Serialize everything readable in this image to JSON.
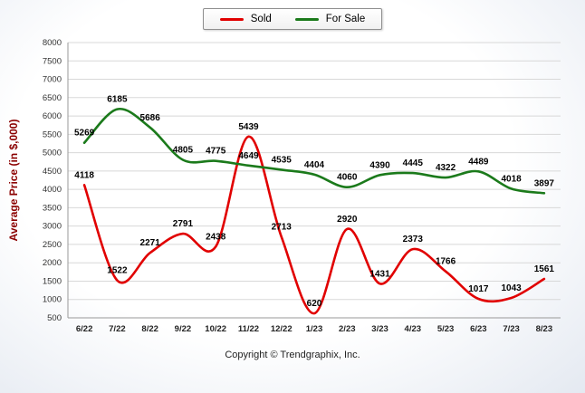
{
  "footer": {
    "copyright": "Copyright © Trendgraphix, Inc."
  },
  "chart_data": {
    "type": "line",
    "categories": [
      "6/22",
      "7/22",
      "8/22",
      "9/22",
      "10/22",
      "11/22",
      "12/22",
      "1/23",
      "2/23",
      "3/23",
      "4/23",
      "5/23",
      "6/23",
      "7/23",
      "8/23"
    ],
    "series": [
      {
        "name": "Sold",
        "color": "#e10000",
        "values": [
          4118,
          1522,
          2271,
          2791,
          2438,
          5439,
          2713,
          620,
          2920,
          1431,
          2373,
          1766,
          1017,
          1043,
          1561
        ]
      },
      {
        "name": "For Sale",
        "color": "#1b7a1b",
        "values": [
          5269,
          6185,
          5686,
          4805,
          4775,
          4649,
          4535,
          4404,
          4060,
          4390,
          4445,
          4322,
          4489,
          4018,
          3897
        ]
      }
    ],
    "title": "",
    "xlabel": "",
    "ylabel": "Average Price (in $,000)",
    "ylim": [
      500,
      8000
    ],
    "ytick_step": 500,
    "grid": true,
    "legend_position": "top-center",
    "ylabel_color": "#8b0000",
    "grid_color": "#d8d8d8",
    "axis_color": "#999999"
  }
}
